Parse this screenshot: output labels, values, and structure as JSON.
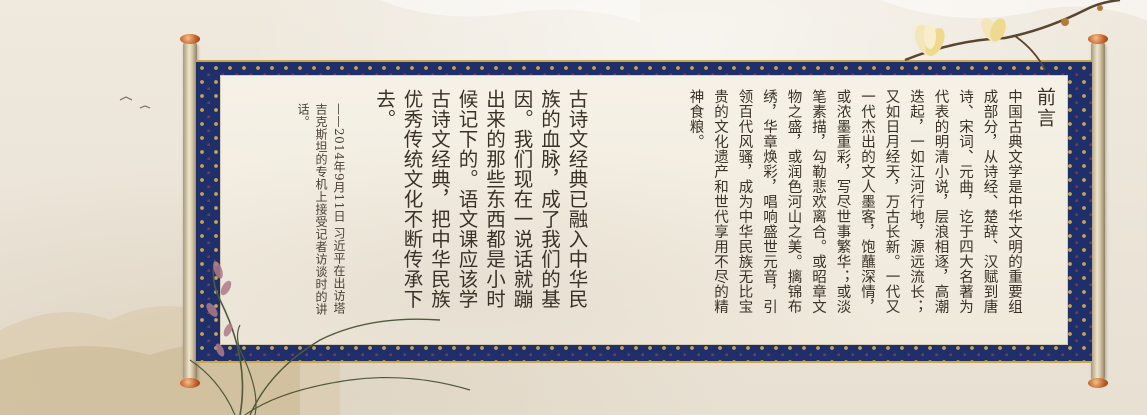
{
  "preface": {
    "title": "前言",
    "body": "中国古典文学是中华文明的重要组成部分，从诗经、楚辞、汉赋到唐诗、宋词、元曲，讫于四大名著为代表的明清小说，层浪相逐，高潮迭起，一如江河行地，源远流长；又如日月经天，万古长新。一代又一代杰出的文人墨客，饱蘸深情，或浓墨重彩，写尽世事繁华；或淡笔素描，勾勒悲欢离合。或昭章文物之盛，或润色河山之美。摛锦布绣，华章焕彩，唱响盛世元音，引领百代风骚，成为中华民族无比宝贵的文化遗产和世代享用不尽的精神食粮。"
  },
  "quote": {
    "text": "古诗文经典已融入中华民族的血脉，成了我们的基因。我们现在一说话就蹦出来的那些东西都是小时候记下的。语文课应该学古诗文经典，把中华民族优秀传统文化不断传承下去。",
    "attribution": "——2014年9月11日 习近平在出访塔吉克斯坦的专机上接受记者访谈时的讲话。"
  },
  "colors": {
    "brocade": "#1f2f6b",
    "gold": "#c9a64a",
    "paper": "#f3eee2",
    "ink": "#3a3228"
  }
}
